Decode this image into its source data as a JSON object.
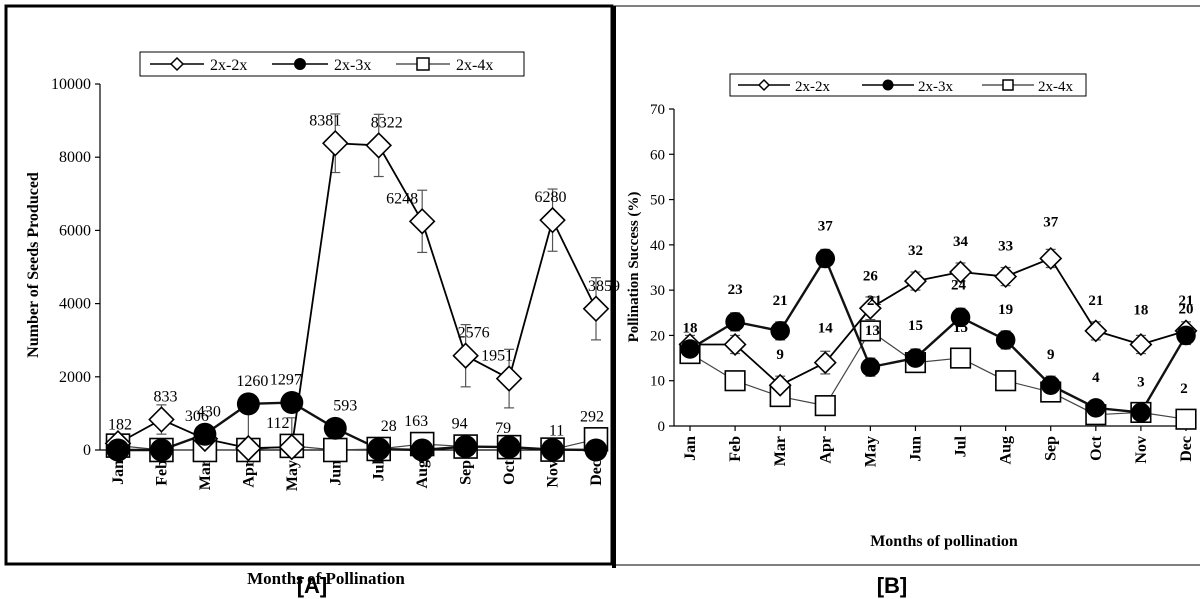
{
  "months": [
    "Jan",
    "Feb",
    "Mar",
    "Apr",
    "May",
    "Jun",
    "Jul",
    "Aug",
    "Sep",
    "Oct",
    "Nov",
    "Dec"
  ],
  "colors": {
    "stroke": "#000000",
    "error_bar": "#555555",
    "series_2x3x_line": "#111111",
    "series_2x4x_line": "#444444"
  },
  "chart_data": [
    {
      "panel_label": "[A]",
      "type": "line",
      "xlabel": "Months of Pollination",
      "ylabel": "Number of Seeds Produced",
      "ylim": [
        0,
        10000
      ],
      "yticks": [
        0,
        2000,
        4000,
        6000,
        8000,
        10000
      ],
      "legend": "top",
      "grid": false,
      "series": [
        {
          "name": "2x-2x",
          "marker": "diamond-open",
          "values": [
            182,
            833,
            306,
            50,
            80,
            8381,
            8322,
            6248,
            2576,
            1951,
            6280,
            3859
          ]
        },
        {
          "name": "2x-3x",
          "marker": "circle-filled",
          "values": [
            0,
            0,
            430,
            1260,
            1297,
            593,
            28,
            0,
            94,
            79,
            11,
            0
          ]
        },
        {
          "name": "2x-4x",
          "marker": "square-open",
          "values": [
            120,
            0,
            0,
            0,
            112,
            0,
            28,
            163,
            94,
            79,
            11,
            292
          ]
        }
      ],
      "error": [
        [
          null,
          400,
          300,
          1000,
          800,
          800,
          850,
          850,
          850,
          800,
          850,
          850
        ],
        [
          null,
          null,
          null,
          null,
          null,
          null,
          null,
          null,
          null,
          null,
          null,
          null
        ],
        [
          null,
          null,
          null,
          null,
          null,
          null,
          null,
          null,
          null,
          null,
          null,
          null
        ]
      ],
      "data_labels": [
        {
          "text": "182",
          "m": 0,
          "v": 182
        },
        {
          "text": "833",
          "m": 1,
          "v": 833
        },
        {
          "text": "430",
          "m": 2,
          "v": 430
        },
        {
          "text": "306",
          "m": 2,
          "v": 306
        },
        {
          "text": "1260",
          "m": 3,
          "v": 1260
        },
        {
          "text": "1297",
          "m": 4,
          "v": 1297
        },
        {
          "text": "112",
          "m": 4,
          "v": 112
        },
        {
          "text": "8381",
          "m": 5,
          "v": 8381
        },
        {
          "text": "593",
          "m": 5,
          "v": 593
        },
        {
          "text": "8322",
          "m": 6,
          "v": 8322
        },
        {
          "text": "28",
          "m": 6,
          "v": 28
        },
        {
          "text": "6248",
          "m": 7,
          "v": 6248
        },
        {
          "text": "163",
          "m": 7,
          "v": 163
        },
        {
          "text": "2576",
          "m": 8,
          "v": 2576
        },
        {
          "text": "94",
          "m": 8,
          "v": 94
        },
        {
          "text": "1951",
          "m": 9,
          "v": 1951
        },
        {
          "text": "79",
          "m": 9,
          "v": 79
        },
        {
          "text": "6280",
          "m": 10,
          "v": 6280
        },
        {
          "text": "11",
          "m": 10,
          "v": 11
        },
        {
          "text": "3859",
          "m": 11,
          "v": 3859
        },
        {
          "text": "292",
          "m": 11,
          "v": 292
        }
      ]
    },
    {
      "panel_label": "[B]",
      "type": "line",
      "xlabel": "Months of pollination",
      "ylabel": "Pollination Success (%)",
      "ylim": [
        0,
        70
      ],
      "yticks": [
        0,
        10,
        20,
        30,
        40,
        50,
        60,
        70
      ],
      "legend": "top",
      "grid": false,
      "series": [
        {
          "name": "2x-2x",
          "marker": "diamond-open",
          "values": [
            18,
            18,
            9,
            14,
            26,
            32,
            34,
            33,
            37,
            21,
            18,
            21
          ]
        },
        {
          "name": "2x-3x",
          "marker": "circle-filled",
          "values": [
            17,
            23,
            21,
            37,
            13,
            15,
            24,
            19,
            9,
            4,
            3,
            20
          ]
        },
        {
          "name": "2x-4x",
          "marker": "square-open",
          "values": [
            16,
            10,
            6.5,
            4.5,
            21,
            14,
            15,
            10,
            7.5,
            2.5,
            3,
            1.5
          ]
        }
      ],
      "error": [
        [
          2,
          2,
          2,
          2.5,
          2.5,
          2,
          2,
          2,
          2,
          2,
          2,
          2
        ],
        [
          1,
          2,
          2,
          2,
          2,
          2,
          2,
          2,
          2,
          1,
          1,
          2
        ],
        [
          null,
          null,
          null,
          null,
          null,
          null,
          null,
          null,
          null,
          null,
          null,
          null
        ]
      ],
      "data_labels": [
        {
          "text": "18",
          "m": 0,
          "v": 18
        },
        {
          "text": "23",
          "m": 1,
          "v": 23
        },
        {
          "text": "21",
          "m": 2,
          "v": 21
        },
        {
          "text": "9",
          "m": 2,
          "v": 9
        },
        {
          "text": "37",
          "m": 3,
          "v": 37
        },
        {
          "text": "14",
          "m": 3,
          "v": 14
        },
        {
          "text": "26",
          "m": 4,
          "v": 26
        },
        {
          "text": "21",
          "m": 4,
          "v": 21
        },
        {
          "text": "13",
          "m": 4,
          "v": 13
        },
        {
          "text": "32",
          "m": 5,
          "v": 32
        },
        {
          "text": "15",
          "m": 5,
          "v": 15
        },
        {
          "text": "34",
          "m": 6,
          "v": 34
        },
        {
          "text": "24",
          "m": 6,
          "v": 24
        },
        {
          "text": "15",
          "m": 6,
          "v": 15
        },
        {
          "text": "33",
          "m": 7,
          "v": 33
        },
        {
          "text": "19",
          "m": 7,
          "v": 19
        },
        {
          "text": "37",
          "m": 8,
          "v": 37
        },
        {
          "text": "9",
          "m": 8,
          "v": 9
        },
        {
          "text": "21",
          "m": 9,
          "v": 21
        },
        {
          "text": "4",
          "m": 9,
          "v": 4
        },
        {
          "text": "18",
          "m": 10,
          "v": 18
        },
        {
          "text": "3",
          "m": 10,
          "v": 3
        },
        {
          "text": "21",
          "m": 11,
          "v": 21
        },
        {
          "text": "20",
          "m": 11,
          "v": 20
        },
        {
          "text": "2",
          "m": 11,
          "v": 2
        }
      ]
    }
  ]
}
